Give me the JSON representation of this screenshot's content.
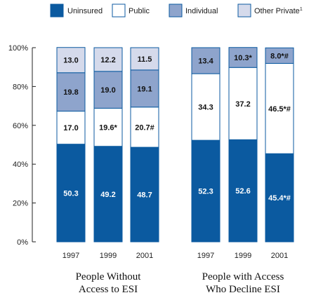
{
  "colors": {
    "uninsured": "#0b5aa0",
    "public": "#ffffff",
    "individual": "#8ea4cc",
    "other_private": "#d5daeb",
    "bar_stroke": "#0b5aa0",
    "axis": "#222222"
  },
  "legend": [
    {
      "key": "uninsured",
      "label": "Uninsured",
      "sup": ""
    },
    {
      "key": "public",
      "label": "Public",
      "sup": ""
    },
    {
      "key": "individual",
      "label": "Individual",
      "sup": ""
    },
    {
      "key": "other_private",
      "label": "Other Private",
      "sup": "1"
    }
  ],
  "groups": [
    {
      "title_lines": [
        "People Without",
        "Access to ESI"
      ]
    },
    {
      "title_lines": [
        "People with Access",
        "Who Decline ESI"
      ]
    }
  ],
  "chart_data": {
    "type": "bar",
    "stacked": true,
    "normalized_percent": true,
    "title": "",
    "xlabel": "",
    "ylabel": "",
    "ylim": [
      0,
      100
    ],
    "yticks": [
      "0%",
      "20%",
      "40%",
      "60%",
      "80%",
      "100%"
    ],
    "grid": false,
    "legend_position": "top",
    "categories": [
      "1997",
      "1999",
      "2001",
      "1997",
      "1999",
      "2001"
    ],
    "category_groups": [
      "People Without Access to ESI",
      "People Without Access to ESI",
      "People Without Access to ESI",
      "People with Access Who Decline ESI",
      "People with Access Who Decline ESI",
      "People with Access Who Decline ESI"
    ],
    "series": [
      {
        "key": "uninsured",
        "name": "Uninsured",
        "values": [
          50.3,
          49.2,
          48.7,
          52.3,
          52.6,
          45.4
        ],
        "labels": [
          "50.3",
          "49.2",
          "48.7",
          "52.3",
          "52.6",
          "45.4*#"
        ]
      },
      {
        "key": "public",
        "name": "Public",
        "values": [
          17.0,
          19.6,
          20.7,
          34.3,
          37.2,
          46.5
        ],
        "labels": [
          "17.0",
          "19.6*",
          "20.7#",
          "34.3",
          "37.2",
          "46.5*#"
        ]
      },
      {
        "key": "individual",
        "name": "Individual",
        "values": [
          19.8,
          19.0,
          19.1,
          13.4,
          10.3,
          8.0
        ],
        "labels": [
          "19.8",
          "19.0",
          "19.1",
          "13.4",
          "10.3*",
          "8.0*#"
        ]
      },
      {
        "key": "other_private",
        "name": "Other Private",
        "values": [
          13.0,
          12.2,
          11.5,
          0,
          0,
          0
        ],
        "labels": [
          "13.0",
          "12.2",
          "11.5",
          "",
          "",
          ""
        ]
      }
    ]
  }
}
